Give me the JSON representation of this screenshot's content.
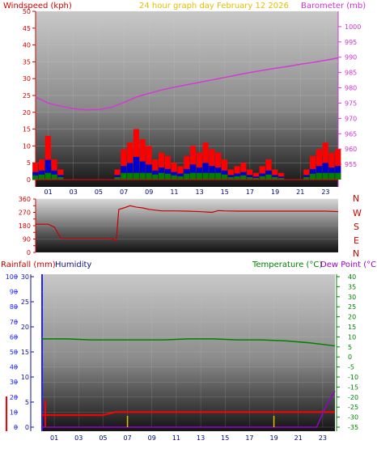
{
  "header": {
    "windspeed_label": "Windspeed (kph)",
    "graph_title": "24 hour graph day   February 12 2026",
    "barometer_label": "Barometer (mb)"
  },
  "middle": {
    "directions": [
      "N",
      "W",
      "S",
      "E",
      "N"
    ]
  },
  "lower": {
    "rainfall_label": "Rainfall (mm)",
    "humidity_label": "Humidity",
    "temperature_label": "Temperature (°C)",
    "dewpoint_label": "Dew Point (°C)"
  },
  "colors": {
    "wind": "#ff0000",
    "gust_avg": "#0000cc",
    "wind_base": "#008000",
    "barometer": "#d23cd2",
    "title": "#e0c000",
    "direction": "#cc0000",
    "rain_axis": "#2020ff",
    "humidity_axis": "#1010a0",
    "temperature": "#008000",
    "dewpoint": "#9900cc",
    "rainfall": "#ff0000"
  },
  "chart_data": [
    {
      "type": "line",
      "name": "wind-barometer",
      "x_ticks": [
        "01",
        "03",
        "05",
        "07",
        "09",
        "11",
        "13",
        "15",
        "17",
        "19",
        "21",
        "23"
      ],
      "wind_ylim": [
        0,
        50
      ],
      "wind_ticks": [
        0,
        5,
        10,
        15,
        20,
        25,
        30,
        35,
        40,
        45,
        50
      ],
      "baro_ylim": [
        950,
        1005
      ],
      "baro_ticks": [
        955,
        960,
        965,
        970,
        975,
        980,
        985,
        990,
        995,
        1000
      ],
      "grid": true,
      "series": [
        {
          "role": "barometer",
          "hours": [
            0,
            1,
            2,
            3,
            4,
            5,
            6,
            7,
            8,
            9,
            10,
            11,
            12,
            13,
            14,
            15,
            16,
            17,
            18,
            19,
            20,
            21,
            22,
            23,
            24
          ],
          "values": [
            977,
            975,
            974,
            973.2,
            972.8,
            972.9,
            973.6,
            975.2,
            977,
            978.2,
            979.3,
            980.2,
            981,
            981.8,
            982.6,
            983.4,
            984.2,
            985,
            985.7,
            986.4,
            987,
            987.7,
            988.3,
            989,
            989.8
          ]
        },
        {
          "role": "wind",
          "hours": [
            0,
            0.5,
            1,
            1.5,
            2,
            2.5,
            3,
            3.5,
            4,
            4.5,
            5,
            5.5,
            6,
            6.5,
            7,
            7.5,
            8,
            8.5,
            9,
            9.5,
            10,
            10.5,
            11,
            11.5,
            12,
            12.5,
            13,
            13.5,
            14,
            14.5,
            15,
            15.5,
            16,
            16.5,
            17,
            17.5,
            18,
            18.5,
            19,
            19.5,
            20,
            20.5,
            21,
            21.5,
            22,
            22.5,
            23,
            23.5,
            24
          ],
          "values": [
            5,
            6,
            13,
            6,
            3,
            0,
            0,
            0,
            0,
            0,
            0,
            0,
            0,
            3,
            9,
            11,
            15,
            12,
            10,
            6,
            8,
            7,
            5,
            4,
            7,
            10,
            8,
            11,
            9,
            8,
            6,
            3,
            4,
            5,
            3,
            2,
            4,
            6,
            3,
            2,
            0,
            0,
            0,
            3,
            7,
            9,
            11,
            8,
            9
          ]
        }
      ]
    },
    {
      "type": "line",
      "name": "wind-direction",
      "y_ticks": [
        0,
        45,
        90,
        135,
        180,
        225,
        270,
        315,
        360
      ],
      "y_tick_labels": [
        "0",
        "90",
        "180",
        "270",
        "360"
      ],
      "ylim": [
        0,
        360
      ],
      "series": [
        {
          "role": "direction",
          "hours": [
            0,
            0.5,
            1,
            1.5,
            2,
            3,
            4,
            5,
            6,
            6.4,
            6.6,
            7,
            7.5,
            8,
            8.5,
            9,
            10,
            11,
            12,
            13,
            14,
            14.5,
            15,
            16,
            17,
            18,
            19,
            20,
            21,
            22,
            23,
            24
          ],
          "values": [
            190,
            190,
            190,
            170,
            95,
            95,
            95,
            95,
            95,
            80,
            290,
            300,
            315,
            305,
            300,
            290,
            280,
            280,
            278,
            275,
            270,
            282,
            280,
            278,
            278,
            278,
            278,
            278,
            278,
            278,
            278,
            275
          ]
        }
      ]
    },
    {
      "type": "line",
      "name": "rain-humidity-temperature",
      "x_ticks": [
        "01",
        "03",
        "05",
        "07",
        "09",
        "11",
        "13",
        "15",
        "17",
        "19",
        "21",
        "23"
      ],
      "rain_ylim": [
        0,
        100
      ],
      "rain_ticks": [
        0,
        10,
        20,
        30,
        40,
        50,
        60,
        70,
        80,
        90,
        100
      ],
      "humidity_ticks": [
        0,
        5,
        10,
        15,
        20,
        25,
        30
      ],
      "temp_ylim": [
        -35,
        40
      ],
      "temp_ticks": [
        40,
        35,
        30,
        25,
        20,
        15,
        10,
        5,
        0,
        -5,
        -10,
        -15,
        -20,
        -25,
        -30,
        -35
      ],
      "series": [
        {
          "role": "temperature",
          "hours": [
            0,
            2,
            4,
            6,
            8,
            10,
            12,
            14,
            16,
            18,
            20,
            22,
            24
          ],
          "values": [
            9,
            9,
            8.5,
            8.5,
            8.5,
            8.5,
            9,
            9,
            8.5,
            8.5,
            8,
            7,
            5.5
          ]
        },
        {
          "role": "dewpoint",
          "hours": [
            0,
            22.5,
            23,
            23.5,
            24
          ],
          "values": [
            -35,
            -35,
            -28,
            -22,
            -17
          ]
        },
        {
          "role": "rainfall",
          "hours": [
            0,
            0.5,
            1,
            3,
            5,
            6,
            7,
            9,
            12,
            15,
            18,
            21,
            23,
            24
          ],
          "values": [
            8,
            8,
            8,
            8,
            8,
            10,
            10,
            10,
            10,
            10,
            10,
            10,
            10,
            10
          ]
        }
      ]
    }
  ]
}
